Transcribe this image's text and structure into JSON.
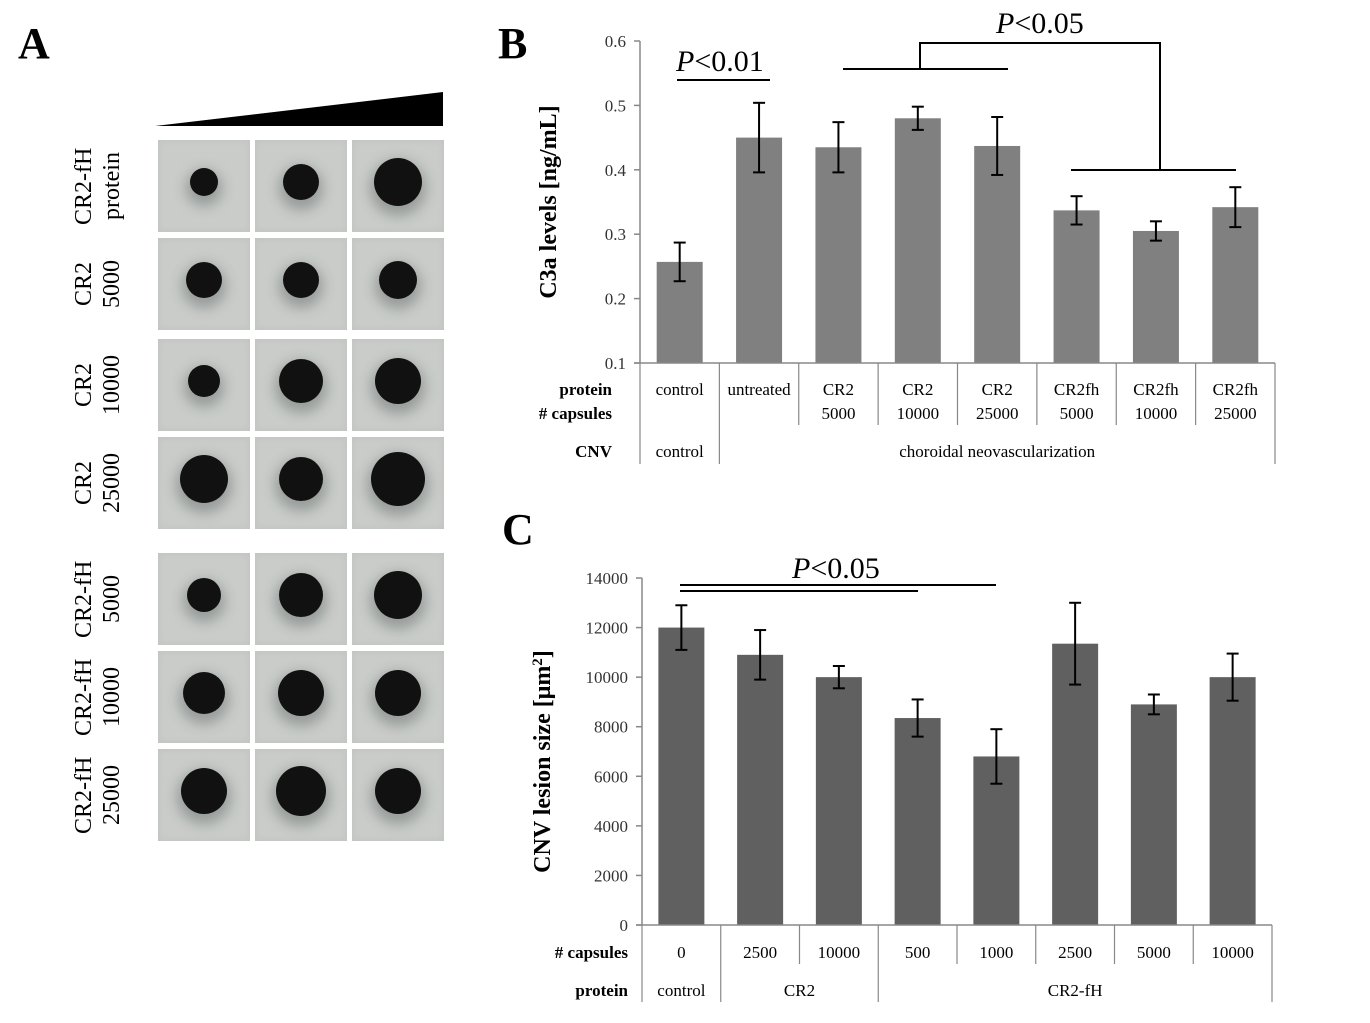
{
  "panels": {
    "a": {
      "letter": "A",
      "gradient_label": "increasing amount",
      "rows": [
        {
          "line1": "CR2-fH",
          "line2": "protein",
          "dots": [
            0.35,
            0.55,
            0.85
          ]
        },
        {
          "line1": "CR2",
          "line2": "5000",
          "dots": [
            0.55,
            0.55,
            0.6
          ]
        },
        {
          "line1": "CR2",
          "line2": "10000",
          "dots": [
            0.45,
            0.75,
            0.8
          ]
        },
        {
          "line1": "CR2",
          "line2": "25000",
          "dots": [
            0.85,
            0.75,
            1.0
          ]
        },
        {
          "line1": "CR2-fH",
          "line2": "5000",
          "dots": [
            0.5,
            0.75,
            0.85
          ]
        },
        {
          "line1": "CR2-fH",
          "line2": "10000",
          "dots": [
            0.7,
            0.8,
            0.8
          ]
        },
        {
          "line1": "CR2-fH",
          "line2": "25000",
          "dots": [
            0.8,
            0.9,
            0.8
          ]
        }
      ]
    },
    "b": {
      "letter": "B"
    },
    "c": {
      "letter": "C"
    }
  },
  "chart_data": [
    {
      "id": "B",
      "type": "bar",
      "title": "",
      "ylabel": "C3a levels [ng/mL]",
      "ylim": [
        0.1,
        0.6
      ],
      "yticks": [
        "0.1",
        "0.2",
        "0.3",
        "0.4",
        "0.5",
        "0.6"
      ],
      "grid": false,
      "bar_color": "#808080",
      "row_headers": {
        "protein": "protein",
        "capsules": "# capsules",
        "cnv": "CNV"
      },
      "categories": [
        {
          "protein": "control",
          "capsules": ""
        },
        {
          "protein": "untreated",
          "capsules": ""
        },
        {
          "protein": "CR2",
          "capsules": "5000"
        },
        {
          "protein": "CR2",
          "capsules": "10000"
        },
        {
          "protein": "CR2",
          "capsules": "25000"
        },
        {
          "protein": "CR2fh",
          "capsules": "5000"
        },
        {
          "protein": "CR2fh",
          "capsules": "10000"
        },
        {
          "protein": "CR2fh",
          "capsules": "25000"
        }
      ],
      "cnv_groups": [
        {
          "label": "control",
          "span": 1
        },
        {
          "label": "choroidal neovascularization",
          "span": 7
        }
      ],
      "values": [
        0.257,
        0.45,
        0.435,
        0.48,
        0.437,
        0.337,
        0.305,
        0.342
      ],
      "errors": [
        0.03,
        0.054,
        0.039,
        0.018,
        0.045,
        0.022,
        0.015,
        0.031
      ],
      "annotations": [
        {
          "text_italic": "P",
          "text": "<0.01",
          "from": 0,
          "to": 1
        },
        {
          "text_italic": "P",
          "text": "<0.05",
          "groupA": [
            2,
            4
          ],
          "groupB": [
            5,
            7
          ]
        }
      ]
    },
    {
      "id": "C",
      "type": "bar",
      "title": "",
      "ylabel": "CNV lesion size [μm²]",
      "ylabel_main": "CNV lesion size [μm",
      "ylabel_sup": "2",
      "ylabel_end": "]",
      "ylim": [
        0,
        14000
      ],
      "yticks": [
        "0",
        "2000",
        "4000",
        "6000",
        "8000",
        "10000",
        "12000",
        "14000"
      ],
      "grid": false,
      "bar_color": "#606060",
      "row_headers": {
        "capsules": "# capsules",
        "protein": "protein"
      },
      "categories": [
        "0",
        "2500",
        "10000",
        "500",
        "1000",
        "2500",
        "5000",
        "10000"
      ],
      "protein_groups": [
        {
          "label": "control",
          "span": 1
        },
        {
          "label": "CR2",
          "span": 2
        },
        {
          "label": "CR2-fH",
          "span": 5
        }
      ],
      "values": [
        12000,
        10900,
        10000,
        8350,
        6800,
        11350,
        8900,
        10000
      ],
      "errors": [
        900,
        1000,
        450,
        750,
        1100,
        1650,
        400,
        950
      ],
      "annotations": [
        {
          "text_italic": "P",
          "text": "<0.05",
          "lines": [
            [
              0,
              4
            ],
            [
              0,
              3
            ]
          ]
        }
      ]
    }
  ]
}
